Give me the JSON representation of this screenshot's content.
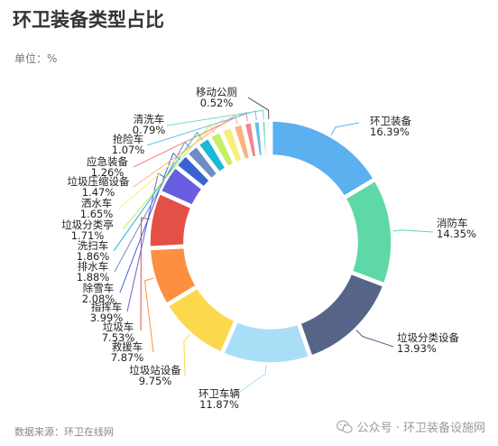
{
  "title": "环卫装备类型占比",
  "unit": "单位：%",
  "source": "数据来源：环卫在线网",
  "watermark": "公众号 · 环卫装备设施网",
  "chart_data": {
    "type": "pie",
    "slices": [
      {
        "name": "环卫装备",
        "value": 16.39,
        "label": "16.39%",
        "color": "#5bb0ef"
      },
      {
        "name": "消防车",
        "value": 14.35,
        "label": "14.35%",
        "color": "#5fd8a8"
      },
      {
        "name": "垃圾分类设备",
        "value": 13.93,
        "label": "13.93%",
        "color": "#566487"
      },
      {
        "name": "环卫车辆",
        "value": 11.87,
        "label": "11.87%",
        "color": "#a9def7"
      },
      {
        "name": "垃圾站设备",
        "value": 9.75,
        "label": "9.75%",
        "color": "#fdd84d"
      },
      {
        "name": "救援车",
        "value": 7.87,
        "label": "7.87%",
        "color": "#fc9040"
      },
      {
        "name": "垃圾车",
        "value": 7.53,
        "label": "7.53%",
        "color": "#e55046"
      },
      {
        "name": "指挥车",
        "value": 3.99,
        "label": "3.99%",
        "color": "#6a5ee0"
      },
      {
        "name": "除雪车",
        "value": 2.08,
        "label": "2.08%",
        "color": "#3b62d3"
      },
      {
        "name": "排水车",
        "value": 1.88,
        "label": "1.88%",
        "color": "#6d8cc2"
      },
      {
        "name": "洗扫车",
        "value": 1.86,
        "label": "1.86%",
        "color": "#1cb8d4"
      },
      {
        "name": "垃圾分类亭",
        "value": 1.71,
        "label": "1.71%",
        "color": "#c7ee66"
      },
      {
        "name": "洒水车",
        "value": 1.65,
        "label": "1.65%",
        "color": "#f6f07a"
      },
      {
        "name": "垃圾压缩设备",
        "value": 1.47,
        "label": "1.47%",
        "color": "#fbb37f"
      },
      {
        "name": "应急装备",
        "value": 1.26,
        "label": "1.26%",
        "color": "#f3858a"
      },
      {
        "name": "抢险车",
        "value": 1.07,
        "label": "1.07%",
        "color": "#66bdec"
      },
      {
        "name": "清洗车",
        "value": 0.79,
        "label": "0.79%",
        "color": "#76dcc0"
      },
      {
        "name": "移动公厕",
        "value": 0.52,
        "label": "0.52%",
        "color": "#4a4a5e"
      }
    ]
  }
}
